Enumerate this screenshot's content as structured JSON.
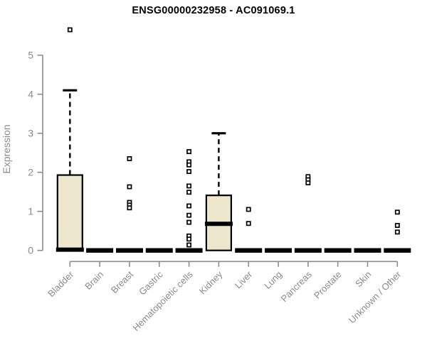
{
  "title": "ENSG00000232958 - AC091069.1",
  "chart_data": {
    "type": "boxplot",
    "title": "ENSG00000232958 - AC091069.1",
    "xlabel": "",
    "ylabel": "Expression",
    "ylim": [
      0,
      5.8
    ],
    "yticks": [
      0,
      1,
      2,
      3,
      4,
      5
    ],
    "grid": false,
    "legend": false,
    "categories": [
      "Bladder",
      "Brain",
      "Breast",
      "Gastric",
      "Hematopoietic cells",
      "Kidney",
      "Liver",
      "Lung",
      "Pancreas",
      "Prostate",
      "Skin",
      "Unknown / Other"
    ],
    "boxes": [
      {
        "category": "Bladder",
        "whisker_low": 0,
        "q1": 0,
        "median": 0.02,
        "q3": 1.93,
        "whisker_high": 4.1,
        "outliers": [
          5.65
        ]
      },
      {
        "category": "Brain",
        "whisker_low": 0,
        "q1": 0,
        "median": 0,
        "q3": 0,
        "whisker_high": 0,
        "outliers": []
      },
      {
        "category": "Breast",
        "whisker_low": 0,
        "q1": 0,
        "median": 0,
        "q3": 0,
        "whisker_high": 0,
        "outliers": [
          2.35,
          1.63,
          1.23,
          1.16,
          1.09
        ]
      },
      {
        "category": "Gastric",
        "whisker_low": 0,
        "q1": 0,
        "median": 0,
        "q3": 0,
        "whisker_high": 0,
        "outliers": []
      },
      {
        "category": "Hematopoietic cells",
        "whisker_low": 0,
        "q1": 0,
        "median": 0,
        "q3": 0,
        "whisker_high": 0,
        "outliers": [
          2.53,
          2.27,
          2.19,
          2.02,
          1.65,
          1.49,
          1.14,
          0.9,
          0.72,
          0.37,
          0.29,
          0.14
        ]
      },
      {
        "category": "Kidney",
        "whisker_low": 0,
        "q1": 0,
        "median": 0.68,
        "q3": 1.41,
        "whisker_high": 3.0,
        "outliers": []
      },
      {
        "category": "Liver",
        "whisker_low": 0,
        "q1": 0,
        "median": 0,
        "q3": 0,
        "whisker_high": 0,
        "outliers": [
          1.05,
          0.69
        ]
      },
      {
        "category": "Lung",
        "whisker_low": 0,
        "q1": 0,
        "median": 0,
        "q3": 0,
        "whisker_high": 0,
        "outliers": []
      },
      {
        "category": "Pancreas",
        "whisker_low": 0,
        "q1": 0,
        "median": 0,
        "q3": 0,
        "whisker_high": 0,
        "outliers": [
          1.89,
          1.81,
          1.73
        ]
      },
      {
        "category": "Prostate",
        "whisker_low": 0,
        "q1": 0,
        "median": 0,
        "q3": 0,
        "whisker_high": 0,
        "outliers": []
      },
      {
        "category": "Skin",
        "whisker_low": 0,
        "q1": 0,
        "median": 0,
        "q3": 0,
        "whisker_high": 0,
        "outliers": []
      },
      {
        "category": "Unknown / Other",
        "whisker_low": 0,
        "q1": 0,
        "median": 0,
        "q3": 0,
        "whisker_high": 0,
        "outliers": [
          0.98,
          0.64,
          0.47
        ]
      }
    ],
    "colors": {
      "box_fill": "#EDE7CD",
      "box_stroke": "#000000",
      "median": "#000000",
      "axis": "#8C8C8C",
      "tick_label": "#8C8C8C",
      "title": "#000000",
      "background": "#FFFFFF"
    }
  }
}
